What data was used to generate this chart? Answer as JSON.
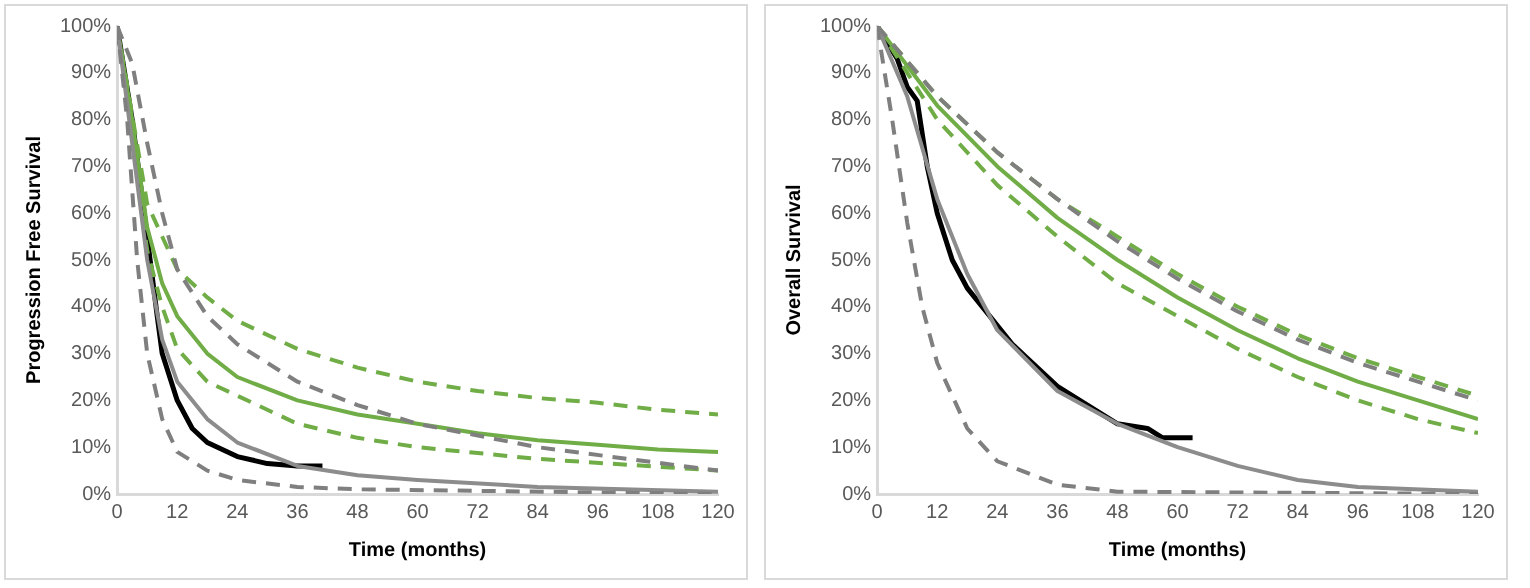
{
  "chart_data": [
    {
      "type": "line",
      "xlabel": "Time (months)",
      "ylabel": "Progression Free Survival",
      "xlim": [
        0,
        120
      ],
      "ylim": [
        0,
        100
      ],
      "xticks": [
        0,
        12,
        24,
        36,
        48,
        60,
        72,
        84,
        96,
        108,
        120
      ],
      "yticks": [
        {
          "value": 0,
          "label": "0%"
        },
        {
          "value": 10,
          "label": "10%"
        },
        {
          "value": 20,
          "label": "20%"
        },
        {
          "value": 30,
          "label": "30%"
        },
        {
          "value": 40,
          "label": "40%"
        },
        {
          "value": 50,
          "label": "50%"
        },
        {
          "value": 60,
          "label": "60%"
        },
        {
          "value": 70,
          "label": "70%"
        },
        {
          "value": 80,
          "label": "80%"
        },
        {
          "value": 90,
          "label": "90%"
        },
        {
          "value": 100,
          "label": "100%"
        }
      ],
      "grid": false,
      "legend": false,
      "marker": "none",
      "series": [
        {
          "color": "#7f7f7f",
          "line_style": "dashed",
          "x": [
            0,
            3,
            6,
            9,
            12,
            18,
            24,
            36,
            48,
            60,
            84,
            120
          ],
          "values": [
            100,
            92,
            75,
            60,
            48,
            38,
            32,
            24,
            19,
            15,
            10,
            5
          ]
        },
        {
          "color": "#7f7f7f",
          "line_style": "dashed",
          "x": [
            0,
            2,
            4,
            6,
            9,
            12,
            18,
            24,
            36,
            48,
            120
          ],
          "values": [
            100,
            80,
            50,
            30,
            16,
            9,
            5,
            3,
            1.5,
            1,
            0
          ]
        },
        {
          "color": "#8c8c8c",
          "line_style": "solid",
          "x": [
            0,
            6,
            9,
            12,
            18,
            24,
            36,
            48,
            60,
            84,
            120
          ],
          "values": [
            100,
            50,
            33,
            24,
            16,
            11,
            6,
            4,
            3,
            1.5,
            0.5
          ]
        },
        {
          "color": "#70ad47",
          "line_style": "dashed",
          "x": [
            0,
            6,
            12,
            18,
            24,
            36,
            48,
            60,
            72,
            84,
            96,
            108,
            120
          ],
          "values": [
            100,
            62,
            48,
            42,
            37,
            31,
            27,
            24,
            22,
            20.5,
            19.5,
            18,
            17
          ]
        },
        {
          "color": "#70ad47",
          "line_style": "dashed",
          "x": [
            0,
            6,
            9,
            12,
            18,
            24,
            36,
            48,
            60,
            84,
            120
          ],
          "values": [
            100,
            52,
            40,
            31,
            24,
            21,
            15,
            12,
            10,
            7.5,
            5
          ]
        },
        {
          "color": "#70ad47",
          "line_style": "solid",
          "x": [
            0,
            3,
            6,
            9,
            12,
            18,
            24,
            36,
            48,
            60,
            72,
            84,
            96,
            108,
            120
          ],
          "values": [
            100,
            80,
            57,
            45,
            38,
            30,
            25,
            20,
            17,
            15,
            13,
            11.5,
            10.5,
            9.5,
            9
          ]
        },
        {
          "color": "#000000",
          "line_style": "solid",
          "x": [
            0,
            3,
            6,
            8,
            9,
            12,
            15,
            18,
            24,
            30,
            36,
            41
          ],
          "values": [
            100,
            80,
            55,
            38,
            30,
            20,
            14,
            11,
            8,
            6.5,
            6,
            6
          ]
        }
      ]
    },
    {
      "type": "line",
      "xlabel": "Time (months)",
      "ylabel": "Overall Survival",
      "xlim": [
        0,
        120
      ],
      "ylim": [
        0,
        100
      ],
      "xticks": [
        0,
        12,
        24,
        36,
        48,
        60,
        72,
        84,
        96,
        108,
        120
      ],
      "yticks": [
        {
          "value": 0,
          "label": "0%"
        },
        {
          "value": 10,
          "label": "10%"
        },
        {
          "value": 20,
          "label": "20%"
        },
        {
          "value": 30,
          "label": "30%"
        },
        {
          "value": 40,
          "label": "40%"
        },
        {
          "value": 50,
          "label": "50%"
        },
        {
          "value": 60,
          "label": "60%"
        },
        {
          "value": 70,
          "label": "70%"
        },
        {
          "value": 80,
          "label": "80%"
        },
        {
          "value": 90,
          "label": "90%"
        },
        {
          "value": 100,
          "label": "100%"
        }
      ],
      "grid": false,
      "legend": false,
      "marker": "none",
      "series": [
        {
          "color": "#7f7f7f",
          "line_style": "dashed",
          "x": [
            0,
            12,
            24,
            36,
            48,
            60,
            72,
            84,
            96,
            108,
            120
          ],
          "values": [
            100,
            85,
            73,
            63,
            54,
            46,
            39,
            33,
            28,
            24,
            20
          ]
        },
        {
          "color": "#7f7f7f",
          "line_style": "dashed",
          "x": [
            0,
            3,
            6,
            9,
            12,
            18,
            24,
            36,
            48,
            120
          ],
          "values": [
            100,
            80,
            58,
            40,
            28,
            14,
            7,
            2,
            0.5,
            0
          ]
        },
        {
          "color": "#8c8c8c",
          "line_style": "solid",
          "x": [
            0,
            6,
            12,
            18,
            24,
            36,
            48,
            60,
            72,
            84,
            96,
            120
          ],
          "values": [
            100,
            85,
            63,
            47,
            35,
            22,
            15,
            10,
            6,
            3,
            1.5,
            0.5
          ]
        },
        {
          "color": "#70ad47",
          "line_style": "dashed",
          "x": [
            0,
            12,
            24,
            36,
            48,
            60,
            72,
            84,
            96,
            108,
            120
          ],
          "values": [
            100,
            85,
            73,
            63,
            55,
            47,
            40,
            34,
            29,
            25,
            21
          ]
        },
        {
          "color": "#70ad47",
          "line_style": "dashed",
          "x": [
            0,
            12,
            24,
            36,
            48,
            60,
            72,
            84,
            96,
            108,
            120
          ],
          "values": [
            100,
            80,
            66,
            55,
            45,
            38,
            31,
            25,
            20,
            16,
            13
          ]
        },
        {
          "color": "#70ad47",
          "line_style": "solid",
          "x": [
            0,
            12,
            24,
            36,
            48,
            60,
            72,
            84,
            96,
            108,
            120
          ],
          "values": [
            100,
            83,
            70,
            59,
            50,
            42,
            35,
            29,
            24,
            20,
            16
          ]
        },
        {
          "color": "#000000",
          "line_style": "solid",
          "x": [
            0,
            4,
            6,
            8,
            10,
            12,
            15,
            18,
            24,
            27,
            30,
            36,
            42,
            48,
            54,
            57,
            63
          ],
          "values": [
            100,
            93,
            87,
            84,
            70,
            60,
            50,
            44,
            36,
            32,
            29,
            23,
            19,
            15,
            14,
            12,
            12
          ]
        }
      ]
    }
  ]
}
